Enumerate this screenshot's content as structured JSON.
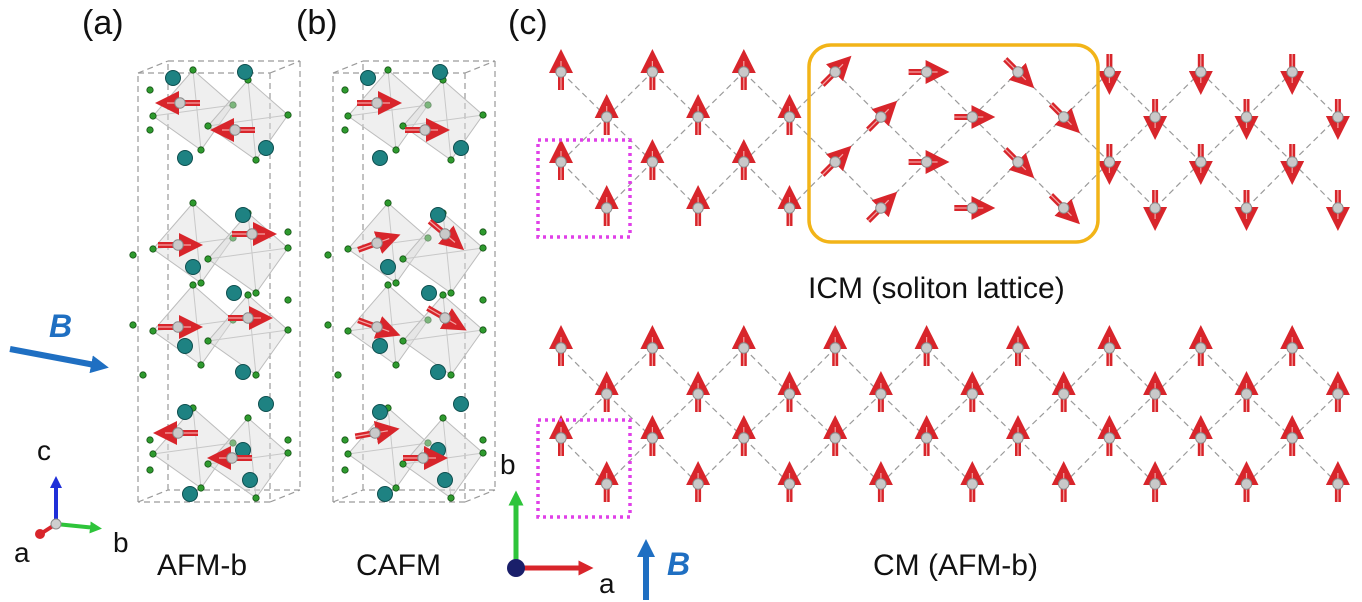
{
  "panel_labels": {
    "a": "(a)",
    "b": "(b)",
    "c": "(c)"
  },
  "captions": {
    "afm_b": "AFM-b",
    "cafm": "CAFM",
    "icm": "ICM (soliton lattice)",
    "cm": "CM (AFM-b)"
  },
  "field_label": "B",
  "axes_3d": {
    "a": "a",
    "b": "b",
    "c": "c"
  },
  "axes_2d": {
    "a": "a",
    "b": "b"
  },
  "colors": {
    "spin_arrow": "#d8252b",
    "field_arrow": "#1f6fc2",
    "magnetic_cell": "#e040e8",
    "soliton_box": "#f2b418",
    "large_atom": "#1e8282",
    "small_atom": "#2e9a2e",
    "magnetic_ion": "#c9c9c9",
    "axis_a": "#d8252b",
    "axis_b": "#2ec43a",
    "axis_c": "#1f2fd8",
    "axis_origin": "#1a1f6a"
  },
  "icm_spin_angles_deg": [
    0,
    45,
    90,
    135,
    180
  ],
  "cm_spin_pattern": "all spins along b (up/down alternating)"
}
